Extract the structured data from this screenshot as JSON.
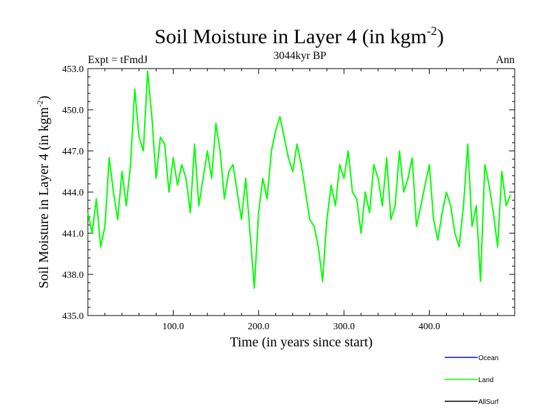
{
  "chart_data": {
    "type": "line",
    "title": "Soil Moisture in Layer 4 (in kgm",
    "title_sup": "-2",
    "title_close": ")",
    "subtitle": "3044kyr BP",
    "left_label": "Expt = tFmdJ",
    "right_label": "Ann",
    "xlabel": "Time (in years since start)",
    "ylabel": "Soil Moisture in Layer 4 (in kgm",
    "ylabel_sup": "-2",
    "ylabel_close": ")",
    "xlim": [
      0,
      500
    ],
    "ylim": [
      435.0,
      453.0
    ],
    "xticks": [
      100,
      200,
      300,
      400
    ],
    "xtick_labels": [
      "100.0",
      "200.0",
      "300.0",
      "400.0"
    ],
    "yticks": [
      435,
      438,
      441,
      444,
      447,
      450,
      453
    ],
    "ytick_labels": [
      "435.0",
      "438.0",
      "441.0",
      "444.0",
      "447.0",
      "450.0",
      "453.0"
    ],
    "legend": [
      {
        "name": "Ocean",
        "color": "#0000ff"
      },
      {
        "name": "Land",
        "color": "#00ff00"
      },
      {
        "name": "AllSurf",
        "color": "#000000"
      }
    ],
    "series": [
      {
        "name": "Land",
        "color": "#00ff00",
        "x_start": 0,
        "x_step": 5,
        "values": [
          442.5,
          441.0,
          443.5,
          440.0,
          441.5,
          446.5,
          444.0,
          442.0,
          445.5,
          443.0,
          446.0,
          451.5,
          448.0,
          447.0,
          452.8,
          449.5,
          445.0,
          448.0,
          447.5,
          444.0,
          446.5,
          444.5,
          446.0,
          445.0,
          442.5,
          447.5,
          443.0,
          445.0,
          447.0,
          445.0,
          449.0,
          447.0,
          443.5,
          445.5,
          446.0,
          444.0,
          442.0,
          445.0,
          441.0,
          437.0,
          442.5,
          445.0,
          443.5,
          447.0,
          448.5,
          449.5,
          448.0,
          446.5,
          445.5,
          447.5,
          446.0,
          444.0,
          442.0,
          441.5,
          440.0,
          437.5,
          442.0,
          444.5,
          443.0,
          446.0,
          445.0,
          447.0,
          444.0,
          443.5,
          441.0,
          444.0,
          442.5,
          446.0,
          445.0,
          443.0,
          446.5,
          442.0,
          443.0,
          447.0,
          444.0,
          445.0,
          446.5,
          441.5,
          443.0,
          444.5,
          446.0,
          442.0,
          440.5,
          442.5,
          444.0,
          443.0,
          441.0,
          440.0,
          443.0,
          447.5,
          441.5,
          443.0,
          437.5,
          446.0,
          444.5,
          442.5,
          440.0,
          445.5,
          443.0,
          443.8
        ]
      }
    ]
  }
}
